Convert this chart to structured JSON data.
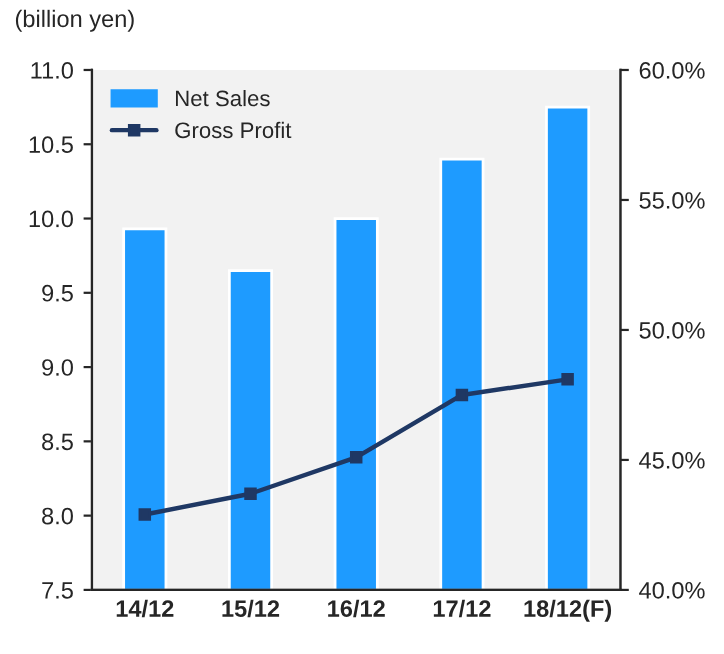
{
  "chart_data": {
    "type": "bar",
    "ylabel": "(billion yen)",
    "categories": [
      "14/12",
      "15/12",
      "16/12",
      "17/12",
      "18/12(F)"
    ],
    "series": [
      {
        "name": "Net Sales",
        "color": "#1e9bff",
        "values": [
          9.93,
          9.65,
          10.0,
          10.4,
          10.75
        ]
      },
      {
        "name": "Gross Profit",
        "type": "line",
        "axis": "y2",
        "color": "#1f3864",
        "marker": "square",
        "values": [
          42.9,
          43.7,
          45.1,
          47.5,
          48.1
        ]
      }
    ],
    "ylim": [
      7.5,
      11.0
    ],
    "yticks": [
      7.5,
      {
        "value": 8,
        "label": "8.0"
      },
      8.5,
      {
        "value": 9,
        "label": "9.0"
      },
      9.5,
      {
        "value": 10,
        "label": "10.0"
      },
      10.5,
      {
        "value": 11,
        "label": "11.0"
      }
    ],
    "y2lim": [
      40,
      60
    ],
    "y2ticks": [
      {
        "value": 40,
        "label": "40.0%"
      },
      {
        "value": 45,
        "label": "45.0%"
      },
      {
        "value": 50,
        "label": "50.0%"
      },
      {
        "value": 55,
        "label": "55.0%"
      },
      {
        "value": 60,
        "label": "60.0%"
      }
    ],
    "grid": false,
    "legend": "top left"
  }
}
